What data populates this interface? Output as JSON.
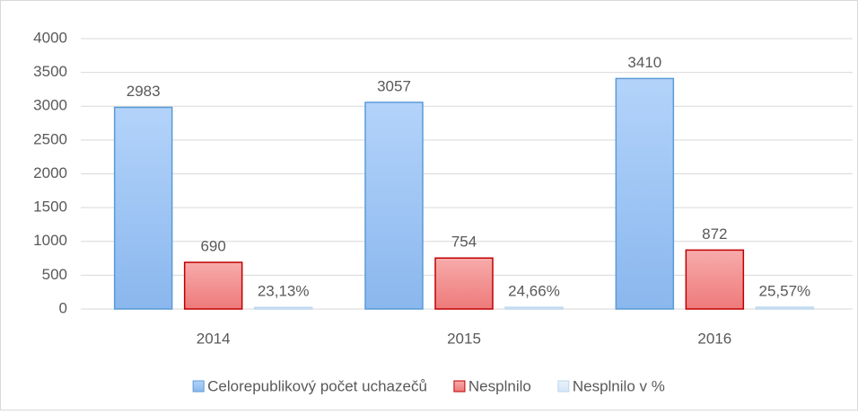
{
  "chart_data": {
    "type": "bar",
    "categories": [
      "2014",
      "2015",
      "2016"
    ],
    "series": [
      {
        "name": "Celorepublikový počet uchazečů",
        "color": "#9dc3f3",
        "values": [
          2983,
          3057,
          3410
        ]
      },
      {
        "name": "Nesplnilo",
        "color": "#f38f8f",
        "values": [
          690,
          754,
          872
        ]
      },
      {
        "name": "Nesplnilo v %",
        "color": "#ddebf7",
        "values": [
          23.13,
          24.66,
          25.57
        ],
        "value_labels": [
          "23,13%",
          "24,66%",
          "25,57%"
        ]
      }
    ],
    "ylim": [
      0,
      4000
    ],
    "yticks": [
      0,
      500,
      1000,
      1500,
      2000,
      2500,
      3000,
      3500,
      4000
    ],
    "grid": true,
    "legend": "bottom"
  }
}
